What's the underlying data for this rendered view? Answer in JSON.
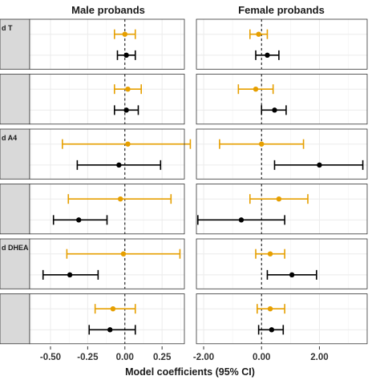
{
  "chart_data": {
    "type": "forest",
    "xlabel": "Model coefficients (95% CI)",
    "facet_columns": [
      {
        "title": "Male probands",
        "xlim": [
          -0.64,
          0.4
        ],
        "ticks": [
          -0.5,
          -0.25,
          0.0,
          0.25
        ],
        "tick_labels": [
          "-0.50",
          "-0.25",
          "0.00",
          "0.25"
        ]
      },
      {
        "title": "Female probands",
        "xlim": [
          -2.25,
          3.65
        ],
        "ticks": [
          -2.0,
          0.0,
          2.0
        ],
        "tick_labels": [
          "-2.00",
          "0.00",
          "2.00"
        ]
      }
    ],
    "rows": [
      {
        "strip_label": "d T",
        "male": [
          {
            "series": "orange",
            "est": 0.0,
            "lo": -0.07,
            "hi": 0.07
          },
          {
            "series": "black",
            "est": 0.01,
            "lo": -0.05,
            "hi": 0.07
          }
        ],
        "female": [
          {
            "series": "orange",
            "est": -0.1,
            "lo": -0.4,
            "hi": 0.2
          },
          {
            "series": "black",
            "est": 0.2,
            "lo": -0.2,
            "hi": 0.6
          }
        ]
      },
      {
        "strip_label": "",
        "male": [
          {
            "series": "orange",
            "est": 0.02,
            "lo": -0.07,
            "hi": 0.11
          },
          {
            "series": "black",
            "est": 0.01,
            "lo": -0.07,
            "hi": 0.09
          }
        ],
        "female": [
          {
            "series": "orange",
            "est": -0.2,
            "lo": -0.8,
            "hi": 0.4
          },
          {
            "series": "black",
            "est": 0.45,
            "lo": 0.0,
            "hi": 0.85
          }
        ]
      },
      {
        "strip_label": "d A4",
        "male": [
          {
            "series": "orange",
            "est": 0.02,
            "lo": -0.42,
            "hi": 0.44
          },
          {
            "series": "black",
            "est": -0.04,
            "lo": -0.32,
            "hi": 0.24
          }
        ],
        "female": [
          {
            "series": "orange",
            "est": 0.0,
            "lo": -1.45,
            "hi": 1.45
          },
          {
            "series": "black",
            "est": 2.0,
            "lo": 0.45,
            "hi": 3.5
          }
        ]
      },
      {
        "strip_label": "",
        "male": [
          {
            "series": "orange",
            "est": -0.03,
            "lo": -0.38,
            "hi": 0.31
          },
          {
            "series": "black",
            "est": -0.31,
            "lo": -0.48,
            "hi": -0.12
          }
        ],
        "female": [
          {
            "series": "orange",
            "est": 0.6,
            "lo": -0.4,
            "hi": 1.6
          },
          {
            "series": "black",
            "est": -0.7,
            "lo": -2.2,
            "hi": 0.8
          }
        ]
      },
      {
        "strip_label": "d DHEA",
        "male": [
          {
            "series": "orange",
            "est": -0.01,
            "lo": -0.39,
            "hi": 0.37
          },
          {
            "series": "black",
            "est": -0.37,
            "lo": -0.55,
            "hi": -0.18
          }
        ],
        "female": [
          {
            "series": "orange",
            "est": 0.3,
            "lo": -0.2,
            "hi": 0.8
          },
          {
            "series": "black",
            "est": 1.05,
            "lo": 0.2,
            "hi": 1.9
          }
        ]
      },
      {
        "strip_label": "",
        "male": [
          {
            "series": "orange",
            "est": -0.08,
            "lo": -0.2,
            "hi": 0.07
          },
          {
            "series": "black",
            "est": -0.1,
            "lo": -0.24,
            "hi": 0.07
          }
        ],
        "female": [
          {
            "series": "orange",
            "est": 0.3,
            "lo": -0.15,
            "hi": 0.8
          },
          {
            "series": "black",
            "est": 0.35,
            "lo": -0.1,
            "hi": 0.75
          }
        ]
      }
    ],
    "reference_line": 0,
    "grid": true,
    "colors": {
      "orange": "#E69F00",
      "black": "#000000",
      "strip": "#d9d9d9",
      "grid": "#ebebeb",
      "panel_border": "#333333"
    }
  }
}
